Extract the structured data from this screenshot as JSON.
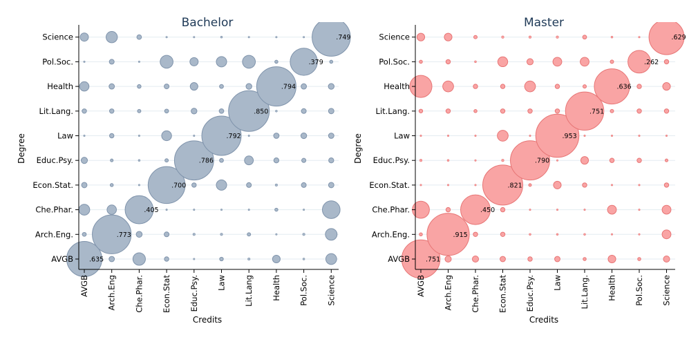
{
  "chart_data": [
    {
      "type": "scatter",
      "subtype": "bubble",
      "title": "Bachelor",
      "xlabel": "Credits",
      "ylabel": "Degree",
      "x_categories": [
        "AVGB",
        "Arch.Eng.",
        "Che.Phar.",
        "Econ.Stat.",
        "Educ.Psy.",
        "Law",
        "Lit.Lang.",
        "Health",
        "Pol.Soc.",
        "Science"
      ],
      "y_categories": [
        "AVGB",
        "Arch.Eng.",
        "Che.Phar.",
        "Econ.Stat.",
        "Educ.Psy.",
        "Law",
        "Lit.Lang.",
        "Health",
        "Pol.Soc.",
        "Science"
      ],
      "color": "#a9b8c9",
      "edge_color": "#7f93ab",
      "grid": true,
      "values": [
        [
          0.635,
          0.015,
          0.08,
          0.01,
          0.001,
          0.007,
          0.003,
          0.03,
          0.002,
          0.06
        ],
        [
          0.008,
          0.773,
          0.018,
          0.012,
          0.003,
          0.003,
          0.006,
          0.0005,
          0.003,
          0.07
        ],
        [
          0.06,
          0.045,
          0.405,
          0.001,
          0.0005,
          0.0005,
          0.0005,
          0.005,
          0.0005,
          0.16
        ],
        [
          0.015,
          0.005,
          0.0005,
          0.7,
          0.01,
          0.055,
          0.012,
          0.003,
          0.012,
          0.015
        ],
        [
          0.02,
          0.004,
          0.002,
          0.006,
          0.786,
          0.008,
          0.04,
          0.013,
          0.009,
          0.013
        ],
        [
          0.0005,
          0.01,
          0.0005,
          0.05,
          0.0005,
          0.792,
          0.0005,
          0.015,
          0.017,
          0.015
        ],
        [
          0.01,
          0.01,
          0.006,
          0.008,
          0.017,
          0.011,
          0.85,
          0.002,
          0.012,
          0.015
        ],
        [
          0.045,
          0.015,
          0.007,
          0.012,
          0.03,
          0.008,
          0.017,
          0.794,
          0.015,
          0.017
        ],
        [
          0.0005,
          0.012,
          0.0005,
          0.085,
          0.035,
          0.055,
          0.085,
          0.005,
          0.379,
          0.005
        ],
        [
          0.035,
          0.065,
          0.011,
          0.0005,
          0.0005,
          0.002,
          0.001,
          0.0005,
          0.0005,
          0.749
        ]
      ],
      "data_labels": [
        {
          "x": "AVGB",
          "y": "AVGB",
          "label": ".635"
        },
        {
          "x": "Arch.Eng.",
          "y": "Arch.Eng.",
          "label": ".773"
        },
        {
          "x": "Che.Phar.",
          "y": "Che.Phar.",
          "label": ".405"
        },
        {
          "x": "Econ.Stat.",
          "y": "Econ.Stat.",
          "label": ".700"
        },
        {
          "x": "Educ.Psy.",
          "y": "Educ.Psy.",
          "label": ".786"
        },
        {
          "x": "Law",
          "y": "Law",
          "label": ".792"
        },
        {
          "x": "Lit.Lang.",
          "y": "Lit.Lang.",
          "label": ".850"
        },
        {
          "x": "Health",
          "y": "Health",
          "label": ".794"
        },
        {
          "x": "Pol.Soc.",
          "y": "Pol.Soc.",
          "label": ".379"
        },
        {
          "x": "Science",
          "y": "Science",
          "label": ".749"
        }
      ]
    },
    {
      "type": "scatter",
      "subtype": "bubble",
      "title": "Master",
      "xlabel": "Credits",
      "ylabel": "Degree",
      "x_categories": [
        "AVGB",
        "Arch.Eng.",
        "Che.Phar.",
        "Econ.Stat.",
        "Educ.Psy.",
        "Law",
        "Lit.Lang.",
        "Health",
        "Pol.Soc.",
        "Science"
      ],
      "y_categories": [
        "AVGB",
        "Arch.Eng.",
        "Che.Phar.",
        "Econ.Stat.",
        "Educ.Psy.",
        "Law",
        "Lit.Lang.",
        "Health",
        "Pol.Soc.",
        "Science"
      ],
      "color": "#f9a4a4",
      "edge_color": "#e77575",
      "grid": true,
      "values": [
        [
          0.751,
          0.02,
          0.02,
          0.015,
          0.01,
          0.015,
          0.005,
          0.03,
          0.005,
          0.02
        ],
        [
          0.005,
          0.915,
          0.01,
          0.01,
          0.002,
          0.002,
          0.002,
          0.001,
          0.001,
          0.04
        ],
        [
          0.15,
          0.01,
          0.45,
          0.01,
          0.0005,
          0.0005,
          0.0005,
          0.04,
          0.0005,
          0.04
        ],
        [
          0.001,
          0.001,
          0.001,
          0.821,
          0.004,
          0.03,
          0.01,
          0.001,
          0.001,
          0.01
        ],
        [
          0.003,
          0.002,
          0.001,
          0.003,
          0.79,
          0.0005,
          0.03,
          0.01,
          0.01,
          0.004
        ],
        [
          0.0005,
          0.0005,
          0.0005,
          0.06,
          0.0005,
          0.953,
          0.0005,
          0.0005,
          0.0005,
          0.0005
        ],
        [
          0.007,
          0.01,
          0.005,
          0.01,
          0.01,
          0.01,
          0.751,
          0.006,
          0.01,
          0.01
        ],
        [
          0.25,
          0.06,
          0.01,
          0.01,
          0.06,
          0.01,
          0.006,
          0.636,
          0.01,
          0.03
        ],
        [
          0.005,
          0.01,
          0.002,
          0.05,
          0.02,
          0.04,
          0.04,
          0.006,
          0.262,
          0.01
        ],
        [
          0.03,
          0.03,
          0.006,
          0.003,
          0.003,
          0.003,
          0.008,
          0.002,
          0.001,
          0.629
        ]
      ],
      "data_labels": [
        {
          "x": "AVGB",
          "y": "AVGB",
          "label": ".751"
        },
        {
          "x": "Arch.Eng.",
          "y": "Arch.Eng.",
          "label": ".915"
        },
        {
          "x": "Che.Phar.",
          "y": "Che.Phar.",
          "label": ".450"
        },
        {
          "x": "Econ.Stat.",
          "y": "Econ.Stat.",
          "label": ".821"
        },
        {
          "x": "Educ.Psy.",
          "y": "Educ.Psy.",
          "label": ".790"
        },
        {
          "x": "Law",
          "y": "Law",
          "label": ".953"
        },
        {
          "x": "Lit.Lang.",
          "y": "Lit.Lang.",
          "label": ".751"
        },
        {
          "x": "Health",
          "y": "Health",
          "label": ".636"
        },
        {
          "x": "Pol.Soc.",
          "y": "Pol.Soc.",
          "label": ".262"
        },
        {
          "x": "Science",
          "y": "Science",
          "label": ".629"
        }
      ]
    }
  ],
  "panels": [
    {
      "title": "Bachelor",
      "xlabel": "Credits",
      "ylabel": "Degree",
      "x_tick_labels": [
        "AVGB",
        "Arch.Eng",
        "Che.Phar.",
        "Econ.Stat",
        "Educ.Psy.",
        "Law",
        "Lit.Lang",
        "Health",
        "Pol.Soc.",
        "Science"
      ],
      "y_tick_labels": [
        "AVGB",
        "Arch.Eng.",
        "Che.Phar.",
        "Econ.Stat.",
        "Educ.Psy.",
        "Law",
        "Lit.Lang.",
        "Health",
        "Pol.Soc.",
        "Science"
      ]
    },
    {
      "title": "Master",
      "xlabel": "Credits",
      "ylabel": "Degree",
      "x_tick_labels": [
        "AVGB",
        "Arch.Eng",
        "Che.Phar.",
        "Econ.Stat",
        "Educ.Psy.",
        "Law",
        "Lit.Lang.",
        "Health",
        "Pol.Soc.",
        "Science"
      ],
      "y_tick_labels": [
        "AVGB",
        "Arch.Eng.",
        "Che.Phar.",
        "Econ.Stat.",
        "Educ.Psy.",
        "Law",
        "Lit.Lang.",
        "Health",
        "Pol.Soc.",
        "Science"
      ]
    }
  ]
}
